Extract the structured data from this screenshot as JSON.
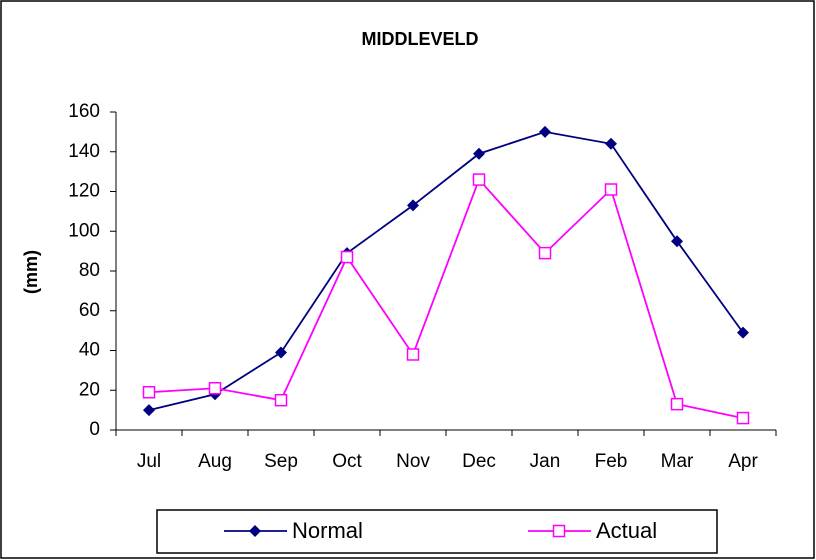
{
  "chart_data": {
    "type": "line",
    "title": "MIDDLEVELD",
    "y_label": "(mm)",
    "categories": [
      "Jul",
      "Aug",
      "Sep",
      "Oct",
      "Nov",
      "Dec",
      "Jan",
      "Feb",
      "Mar",
      "Apr"
    ],
    "series": [
      {
        "name": "Normal",
        "color": "#000080",
        "marker": "diamond",
        "values": [
          10,
          18,
          39,
          89,
          113,
          139,
          150,
          144,
          95,
          49
        ]
      },
      {
        "name": "Actual",
        "color": "#ff00ff",
        "marker": "square",
        "values": [
          19,
          21,
          15,
          87,
          38,
          126,
          89,
          121,
          13,
          6
        ]
      }
    ],
    "ylim": [
      0,
      160
    ],
    "yticks": [
      0,
      20,
      40,
      60,
      80,
      100,
      120,
      140,
      160
    ],
    "grid": false,
    "legend": "bottom"
  }
}
